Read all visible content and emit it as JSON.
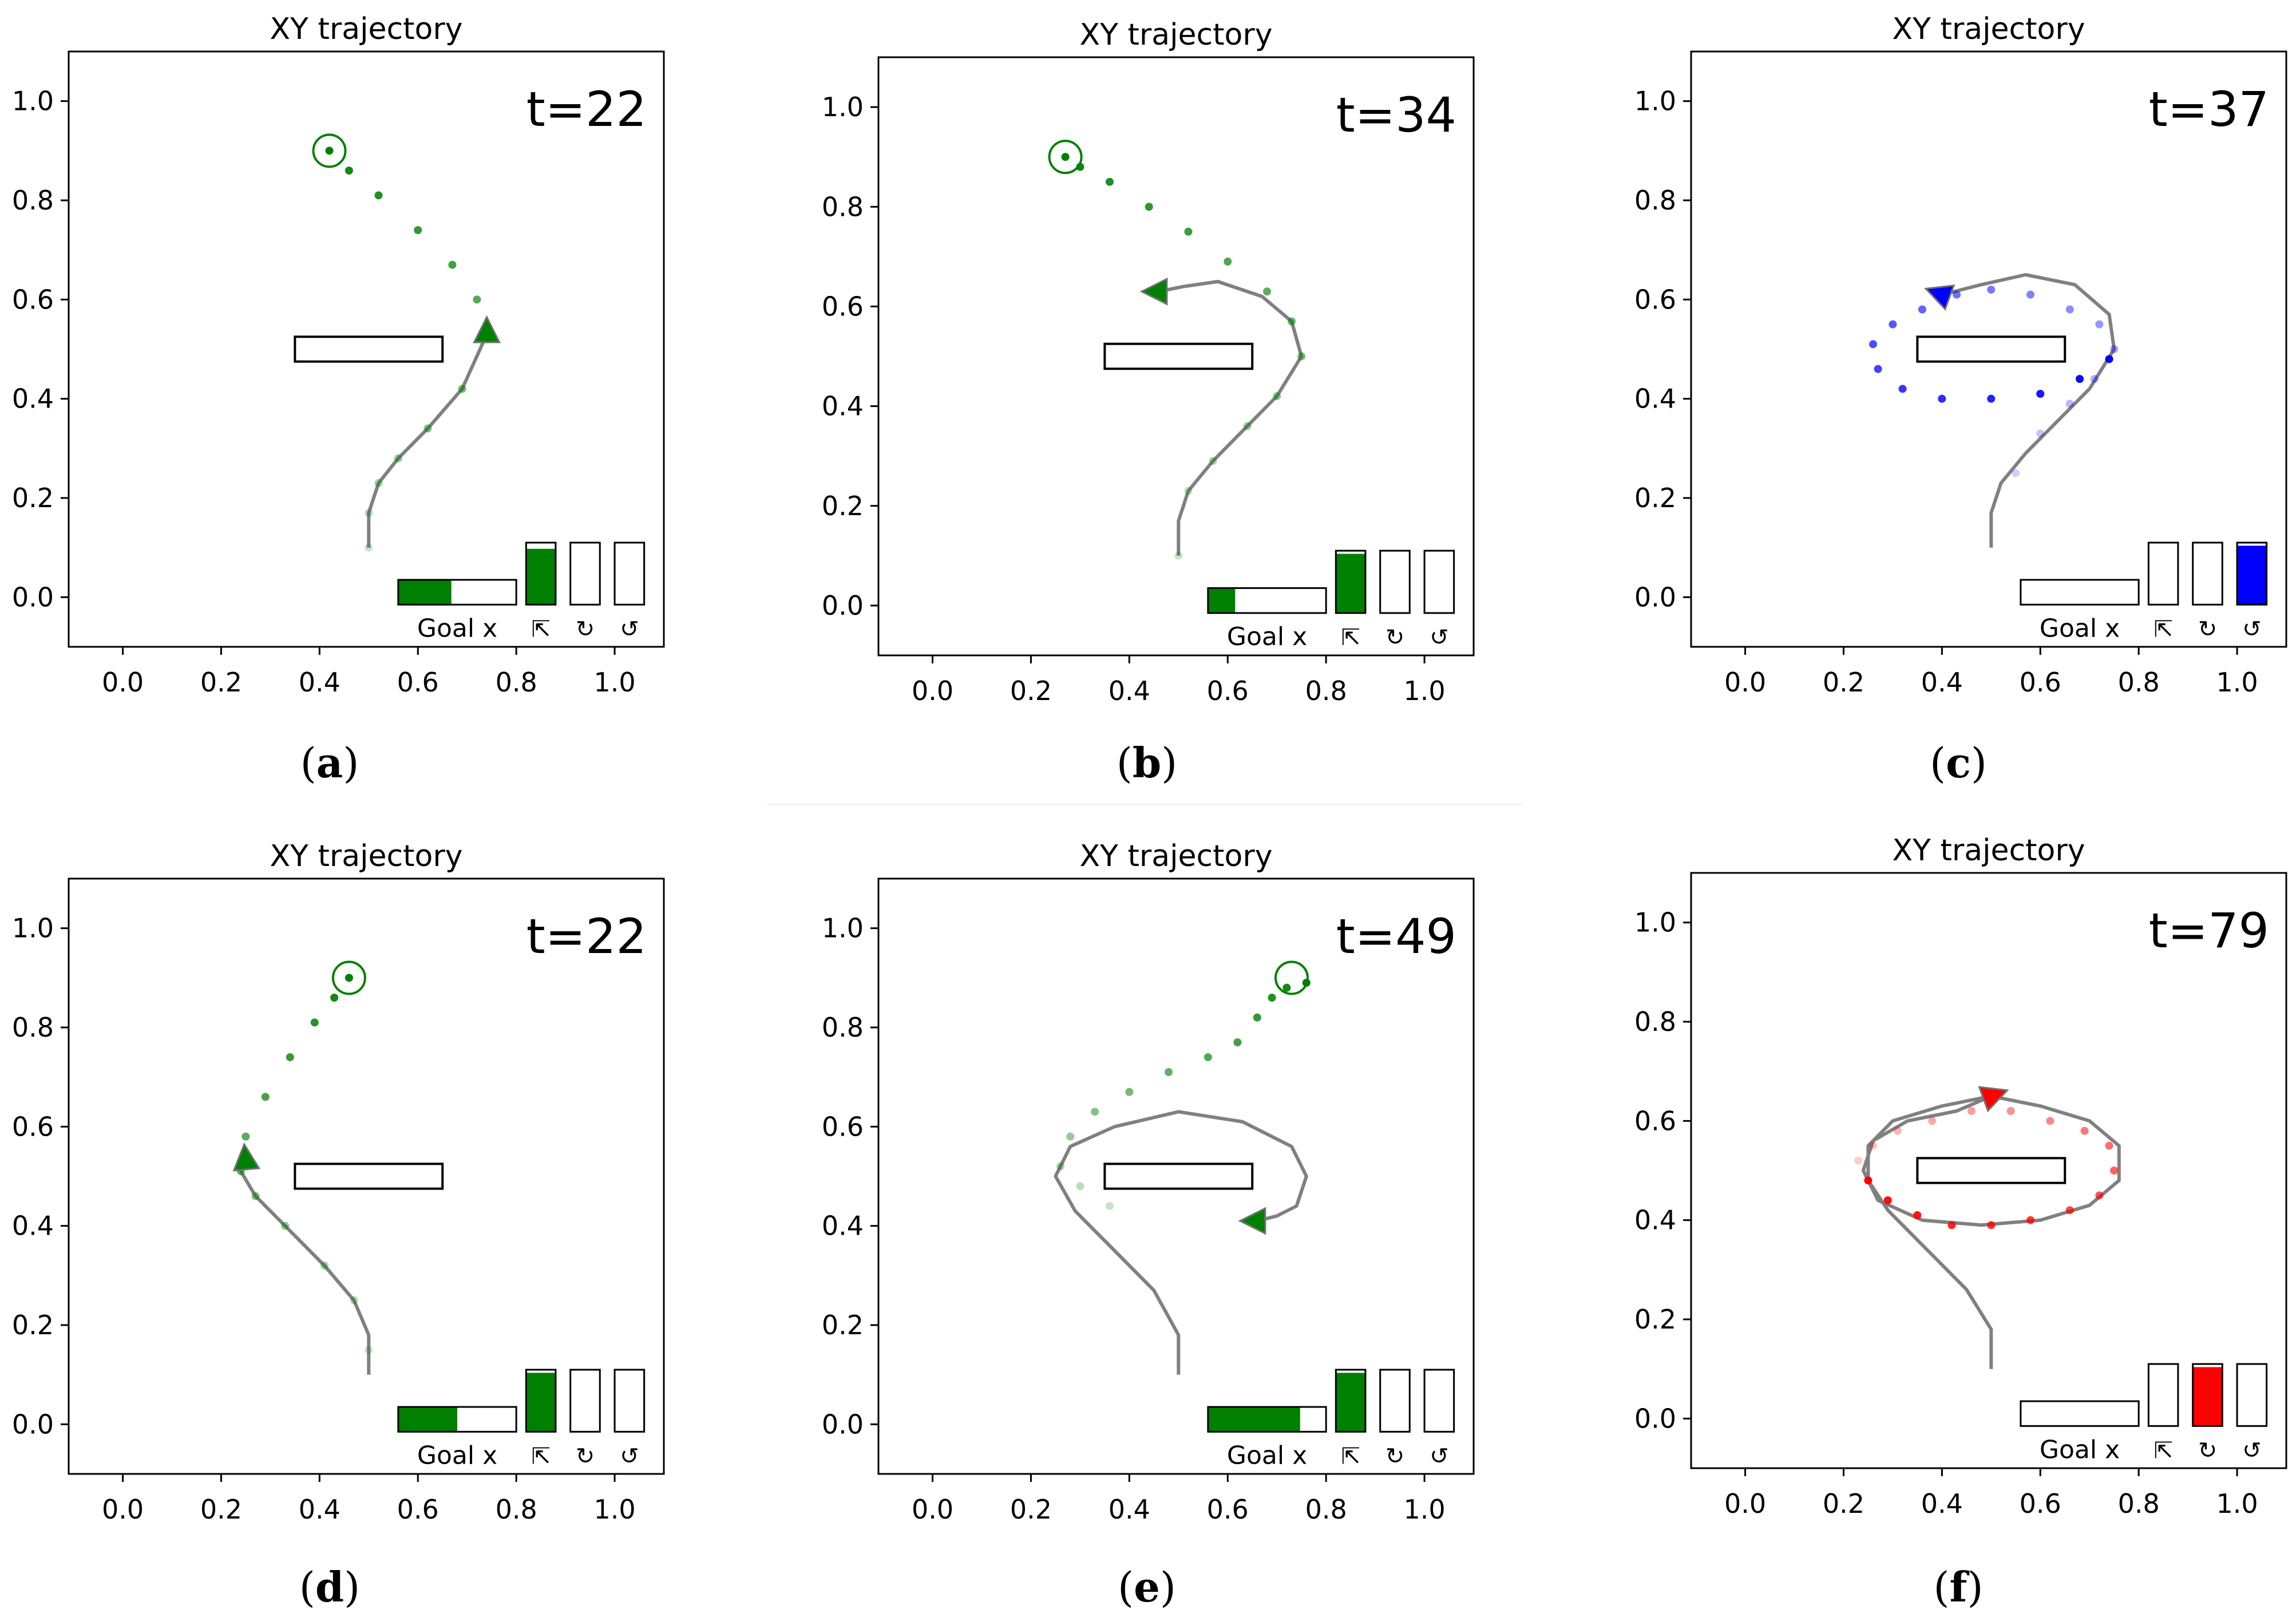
{
  "chart_data": [
    {
      "type": "line",
      "title": "XY trajectory",
      "time_label": "t=22",
      "xticks": [
        "0.0",
        "0.2",
        "0.4",
        "0.6",
        "0.8",
        "1.0"
      ],
      "yticks": [
        "0.0",
        "0.2",
        "0.4",
        "0.6",
        "0.8",
        "1.0"
      ],
      "xlim": [
        -0.11,
        1.1
      ],
      "ylim": [
        -0.1,
        1.1
      ],
      "obstacle": [
        0.35,
        0.475,
        0.65,
        0.525
      ],
      "goal": [
        0.42,
        0.9
      ],
      "agent": [
        0.74,
        0.53
      ],
      "agent_heading": 90,
      "color": "#008000",
      "path": [
        [
          0.5,
          0.1
        ],
        [
          0.5,
          0.17
        ],
        [
          0.52,
          0.23
        ],
        [
          0.56,
          0.28
        ],
        [
          0.62,
          0.34
        ],
        [
          0.69,
          0.42
        ],
        [
          0.74,
          0.53
        ]
      ],
      "dots": [
        [
          0.5,
          0.1
        ],
        [
          0.5,
          0.17
        ],
        [
          0.52,
          0.23
        ],
        [
          0.56,
          0.28
        ],
        [
          0.62,
          0.34
        ],
        [
          0.69,
          0.42
        ],
        [
          0.74,
          0.53
        ],
        [
          0.72,
          0.6
        ],
        [
          0.67,
          0.67
        ],
        [
          0.6,
          0.74
        ],
        [
          0.52,
          0.81
        ],
        [
          0.46,
          0.86
        ],
        [
          0.42,
          0.9
        ]
      ],
      "indicator": {
        "label": "Goal x",
        "goal_x": 0.45,
        "action_labels": [
          "⇱",
          "↻",
          "↺"
        ],
        "actions": [
          0.9,
          0,
          0
        ]
      },
      "caption": "a"
    },
    {
      "type": "line",
      "title": "XY trajectory",
      "time_label": "t=34",
      "xticks": [
        "0.0",
        "0.2",
        "0.4",
        "0.6",
        "0.8",
        "1.0"
      ],
      "yticks": [
        "0.0",
        "0.2",
        "0.4",
        "0.6",
        "0.8",
        "1.0"
      ],
      "xlim": [
        -0.11,
        1.1
      ],
      "ylim": [
        -0.1,
        1.1
      ],
      "obstacle": [
        0.35,
        0.475,
        0.65,
        0.525
      ],
      "goal": [
        0.27,
        0.9
      ],
      "agent": [
        0.46,
        0.63
      ],
      "agent_heading": 180,
      "color": "#008000",
      "path": [
        [
          0.5,
          0.1
        ],
        [
          0.5,
          0.17
        ],
        [
          0.52,
          0.23
        ],
        [
          0.57,
          0.29
        ],
        [
          0.64,
          0.36
        ],
        [
          0.7,
          0.42
        ],
        [
          0.75,
          0.5
        ],
        [
          0.73,
          0.57
        ],
        [
          0.67,
          0.62
        ],
        [
          0.58,
          0.65
        ],
        [
          0.51,
          0.64
        ],
        [
          0.46,
          0.63
        ]
      ],
      "dots": [
        [
          0.5,
          0.1
        ],
        [
          0.52,
          0.23
        ],
        [
          0.57,
          0.29
        ],
        [
          0.64,
          0.36
        ],
        [
          0.7,
          0.42
        ],
        [
          0.75,
          0.5
        ],
        [
          0.73,
          0.57
        ],
        [
          0.68,
          0.63
        ],
        [
          0.6,
          0.69
        ],
        [
          0.52,
          0.75
        ],
        [
          0.44,
          0.8
        ],
        [
          0.36,
          0.85
        ],
        [
          0.3,
          0.88
        ],
        [
          0.27,
          0.9
        ]
      ],
      "indicator": {
        "label": "Goal x",
        "goal_x": 0.23,
        "action_labels": [
          "⇱",
          "↻",
          "↺"
        ],
        "actions": [
          0.95,
          0,
          0
        ]
      },
      "caption": "b"
    },
    {
      "type": "line",
      "title": "XY trajectory",
      "time_label": "t=37",
      "xticks": [
        "0.0",
        "0.2",
        "0.4",
        "0.6",
        "0.8",
        "1.0"
      ],
      "yticks": [
        "0.0",
        "0.2",
        "0.4",
        "0.6",
        "0.8",
        "1.0"
      ],
      "xlim": [
        -0.11,
        1.1
      ],
      "ylim": [
        -0.1,
        1.1
      ],
      "obstacle": [
        0.35,
        0.475,
        0.65,
        0.525
      ],
      "goal": null,
      "agent": [
        0.4,
        0.61
      ],
      "agent_heading": 160,
      "color": "#0000ff",
      "path": [
        [
          0.5,
          0.1
        ],
        [
          0.5,
          0.17
        ],
        [
          0.52,
          0.23
        ],
        [
          0.57,
          0.29
        ],
        [
          0.64,
          0.36
        ],
        [
          0.7,
          0.42
        ],
        [
          0.75,
          0.5
        ],
        [
          0.74,
          0.57
        ],
        [
          0.67,
          0.63
        ],
        [
          0.57,
          0.65
        ],
        [
          0.48,
          0.63
        ],
        [
          0.4,
          0.61
        ]
      ],
      "dots": [
        [
          0.55,
          0.25
        ],
        [
          0.6,
          0.33
        ],
        [
          0.66,
          0.39
        ],
        [
          0.71,
          0.44
        ],
        [
          0.75,
          0.5
        ],
        [
          0.72,
          0.55
        ],
        [
          0.66,
          0.58
        ],
        [
          0.58,
          0.61
        ],
        [
          0.5,
          0.62
        ],
        [
          0.43,
          0.61
        ],
        [
          0.36,
          0.58
        ],
        [
          0.3,
          0.55
        ],
        [
          0.26,
          0.51
        ],
        [
          0.27,
          0.46
        ],
        [
          0.32,
          0.42
        ],
        [
          0.4,
          0.4
        ],
        [
          0.5,
          0.4
        ],
        [
          0.6,
          0.41
        ],
        [
          0.68,
          0.44
        ],
        [
          0.74,
          0.48
        ]
      ],
      "indicator": {
        "label": "Goal x",
        "goal_x": 0,
        "action_labels": [
          "⇱",
          "↻",
          "↺"
        ],
        "actions": [
          0,
          0,
          0.95
        ]
      },
      "caption": "c"
    },
    {
      "type": "line",
      "title": "XY trajectory",
      "time_label": "t=22",
      "xticks": [
        "0.0",
        "0.2",
        "0.4",
        "0.6",
        "0.8",
        "1.0"
      ],
      "yticks": [
        "0.0",
        "0.2",
        "0.4",
        "0.6",
        "0.8",
        "1.0"
      ],
      "xlim": [
        -0.11,
        1.1
      ],
      "ylim": [
        -0.1,
        1.1
      ],
      "obstacle": [
        0.35,
        0.475,
        0.65,
        0.525
      ],
      "goal": [
        0.46,
        0.9
      ],
      "agent": [
        0.25,
        0.53
      ],
      "agent_heading": 95,
      "color": "#008000",
      "path": [
        [
          0.5,
          0.1
        ],
        [
          0.5,
          0.18
        ],
        [
          0.47,
          0.25
        ],
        [
          0.41,
          0.32
        ],
        [
          0.33,
          0.4
        ],
        [
          0.27,
          0.46
        ],
        [
          0.24,
          0.51
        ],
        [
          0.25,
          0.53
        ]
      ],
      "dots": [
        [
          0.5,
          0.15
        ],
        [
          0.47,
          0.25
        ],
        [
          0.41,
          0.32
        ],
        [
          0.33,
          0.4
        ],
        [
          0.27,
          0.46
        ],
        [
          0.24,
          0.51
        ],
        [
          0.25,
          0.58
        ],
        [
          0.29,
          0.66
        ],
        [
          0.34,
          0.74
        ],
        [
          0.39,
          0.81
        ],
        [
          0.43,
          0.86
        ],
        [
          0.46,
          0.9
        ]
      ],
      "indicator": {
        "label": "Goal x",
        "goal_x": 0.5,
        "action_labels": [
          "⇱",
          "↻",
          "↺"
        ],
        "actions": [
          0.95,
          0,
          0
        ]
      },
      "caption": "d"
    },
    {
      "type": "line",
      "title": "XY trajectory",
      "time_label": "t=49",
      "xticks": [
        "0.0",
        "0.2",
        "0.4",
        "0.6",
        "0.8",
        "1.0"
      ],
      "yticks": [
        "0.0",
        "0.2",
        "0.4",
        "0.6",
        "0.8",
        "1.0"
      ],
      "xlim": [
        -0.11,
        1.1
      ],
      "ylim": [
        -0.1,
        1.1
      ],
      "obstacle": [
        0.35,
        0.475,
        0.65,
        0.525
      ],
      "goal": [
        0.73,
        0.9
      ],
      "agent": [
        0.66,
        0.41
      ],
      "agent_heading": 180,
      "color": "#008000",
      "path": [
        [
          0.5,
          0.1
        ],
        [
          0.5,
          0.18
        ],
        [
          0.45,
          0.27
        ],
        [
          0.37,
          0.35
        ],
        [
          0.29,
          0.43
        ],
        [
          0.25,
          0.5
        ],
        [
          0.28,
          0.56
        ],
        [
          0.37,
          0.6
        ],
        [
          0.5,
          0.63
        ],
        [
          0.63,
          0.61
        ],
        [
          0.73,
          0.56
        ],
        [
          0.76,
          0.5
        ],
        [
          0.74,
          0.44
        ],
        [
          0.7,
          0.42
        ],
        [
          0.66,
          0.41
        ]
      ],
      "dots": [
        [
          0.36,
          0.44
        ],
        [
          0.3,
          0.48
        ],
        [
          0.26,
          0.52
        ],
        [
          0.28,
          0.58
        ],
        [
          0.33,
          0.63
        ],
        [
          0.4,
          0.67
        ],
        [
          0.48,
          0.71
        ],
        [
          0.56,
          0.74
        ],
        [
          0.62,
          0.77
        ],
        [
          0.66,
          0.82
        ],
        [
          0.69,
          0.86
        ],
        [
          0.72,
          0.88
        ],
        [
          0.76,
          0.89
        ]
      ],
      "indicator": {
        "label": "Goal x",
        "goal_x": 0.78,
        "action_labels": [
          "⇱",
          "↻",
          "↺"
        ],
        "actions": [
          0.95,
          0,
          0
        ]
      },
      "caption": "e"
    },
    {
      "type": "line",
      "title": "XY trajectory",
      "time_label": "t=79",
      "xticks": [
        "0.0",
        "0.2",
        "0.4",
        "0.6",
        "0.8",
        "1.0"
      ],
      "yticks": [
        "0.0",
        "0.2",
        "0.4",
        "0.6",
        "0.8",
        "1.0"
      ],
      "xlim": [
        -0.11,
        1.1
      ],
      "ylim": [
        -0.1,
        1.1
      ],
      "obstacle": [
        0.35,
        0.475,
        0.65,
        0.525
      ],
      "goal": null,
      "agent": [
        0.5,
        0.65
      ],
      "agent_heading": 20,
      "color": "#ff0000",
      "path": [
        [
          0.5,
          0.1
        ],
        [
          0.5,
          0.18
        ],
        [
          0.45,
          0.26
        ],
        [
          0.37,
          0.34
        ],
        [
          0.29,
          0.42
        ],
        [
          0.25,
          0.48
        ],
        [
          0.25,
          0.55
        ],
        [
          0.3,
          0.6
        ],
        [
          0.4,
          0.63
        ],
        [
          0.5,
          0.65
        ],
        [
          0.6,
          0.63
        ],
        [
          0.7,
          0.6
        ],
        [
          0.76,
          0.55
        ],
        [
          0.76,
          0.48
        ],
        [
          0.7,
          0.43
        ],
        [
          0.6,
          0.4
        ],
        [
          0.48,
          0.39
        ],
        [
          0.36,
          0.4
        ],
        [
          0.27,
          0.44
        ],
        [
          0.24,
          0.5
        ],
        [
          0.26,
          0.56
        ],
        [
          0.33,
          0.6
        ],
        [
          0.43,
          0.62
        ],
        [
          0.5,
          0.65
        ]
      ],
      "dots": [
        [
          0.23,
          0.52
        ],
        [
          0.26,
          0.55
        ],
        [
          0.31,
          0.58
        ],
        [
          0.38,
          0.6
        ],
        [
          0.46,
          0.62
        ],
        [
          0.54,
          0.62
        ],
        [
          0.62,
          0.6
        ],
        [
          0.69,
          0.58
        ],
        [
          0.74,
          0.55
        ],
        [
          0.75,
          0.5
        ],
        [
          0.72,
          0.45
        ],
        [
          0.66,
          0.42
        ],
        [
          0.58,
          0.4
        ],
        [
          0.5,
          0.39
        ],
        [
          0.42,
          0.39
        ],
        [
          0.35,
          0.41
        ],
        [
          0.29,
          0.44
        ],
        [
          0.25,
          0.48
        ]
      ],
      "indicator": {
        "label": "Goal x",
        "goal_x": 0,
        "action_labels": [
          "⇱",
          "↻",
          "↺"
        ],
        "actions": [
          0,
          0.95,
          0
        ]
      },
      "caption": "f"
    }
  ]
}
